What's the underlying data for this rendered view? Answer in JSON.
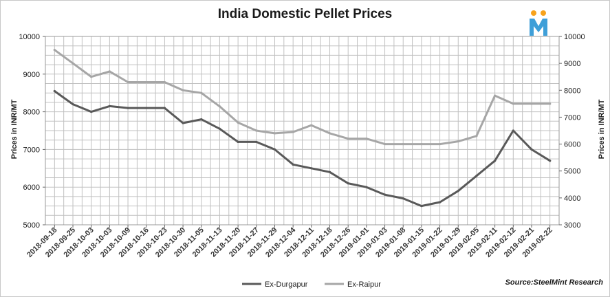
{
  "chart_data": {
    "type": "line",
    "title": "India Domestic Pellet Prices",
    "ylabel": "Prices in INR/MT",
    "y2label": "Prices in INR/MT",
    "ylim": [
      5000,
      10000
    ],
    "y2lim": [
      3000,
      10000
    ],
    "yticks": [
      5000,
      6000,
      7000,
      8000,
      9000,
      10000
    ],
    "y2ticks": [
      3000,
      4000,
      5000,
      6000,
      7000,
      8000,
      9000,
      10000
    ],
    "grid": true,
    "legend_position": "bottom",
    "categories": [
      "2018-09-18",
      "2018-09-25",
      "2018-10-03",
      "2018-10-03",
      "2018-10-09",
      "2018-10-16",
      "2018-10-23",
      "2018-10-30",
      "2018-11-05",
      "2018-11-13",
      "2018-11-20",
      "2018-11-27",
      "2018-11-29",
      "2018-12-04",
      "2018-12-11",
      "2018-12-18",
      "2018-12-26",
      "2019-01-01",
      "2019-01-03",
      "2019-01-08",
      "2019-01-15",
      "2019-01-22",
      "2019-01-29",
      "2019-02-05",
      "2019-02-11",
      "2019-02-12",
      "2019-02-21",
      "2019-02-22"
    ],
    "series": [
      {
        "name": "Ex-Durgapur",
        "axis": "left",
        "color": "#595959",
        "values": [
          8550,
          8200,
          8000,
          8150,
          8100,
          8100,
          8100,
          7700,
          7800,
          7550,
          7200,
          7200,
          7000,
          6600,
          6500,
          6400,
          6100,
          6000,
          5800,
          5700,
          5500,
          5600,
          5900,
          6300,
          6700,
          7500,
          7000,
          6700
        ]
      },
      {
        "name": "Ex-Raipur",
        "axis": "right",
        "color": "#a6a6a6",
        "values": [
          9500,
          9000,
          8500,
          8700,
          8300,
          8300,
          8300,
          8000,
          7900,
          7400,
          6800,
          6500,
          6400,
          6450,
          6700,
          6400,
          6200,
          6200,
          6000,
          6000,
          6000,
          6000,
          6100,
          6300,
          7800,
          7500,
          7500,
          7500
        ]
      }
    ]
  },
  "source_note": "Source:SteelMint Research",
  "colors": {
    "frame": "#c8c8c8",
    "grid": "#c0c0c0",
    "logo_blue": "#3f9fd8",
    "logo_orange": "#f7a21b"
  },
  "logo": {
    "icon": "steelmint-m-logo"
  }
}
